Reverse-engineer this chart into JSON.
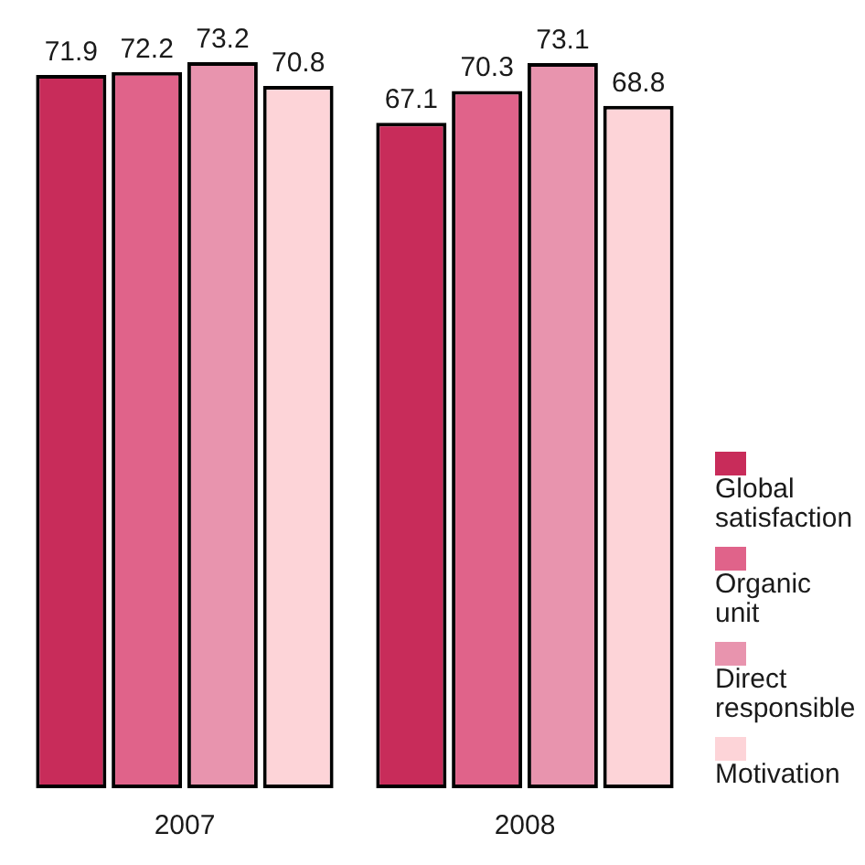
{
  "chart_data": {
    "type": "bar",
    "categories": [
      "2007",
      "2008"
    ],
    "series": [
      {
        "name": "Global satisfaction",
        "color": "#c82c5a",
        "values": [
          71.9,
          67.1
        ]
      },
      {
        "name": "Organic unit",
        "color": "#e0638a",
        "values": [
          72.2,
          70.3
        ]
      },
      {
        "name": "Direct responsible",
        "color": "#e894ae",
        "values": [
          73.2,
          73.1
        ]
      },
      {
        "name": "Motivation",
        "color": "#fdd4d8",
        "values": [
          70.8,
          68.8
        ]
      }
    ],
    "data_labels": true,
    "legend": "right"
  }
}
